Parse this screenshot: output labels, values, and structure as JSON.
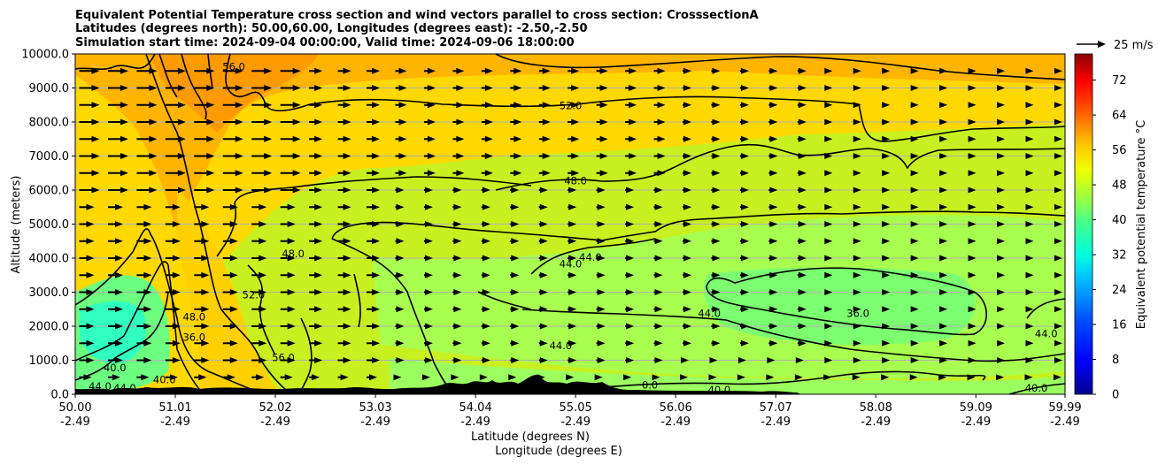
{
  "chart_data": {
    "type": "heatmap",
    "title_lines": [
      "Equivalent Potential Temperature cross section and wind vectors parallel to cross section: CrosssectionA",
      "Latitudes (degrees north): 50.00,60.00, Longitudes (degrees east): -2.50,-2.50",
      "Simulation start time: 2024-09-04 00:00:00, Valid time: 2024-09-06 18:00:00"
    ],
    "xlabel_lines": [
      "Latitude (degrees N)",
      "Longitude (degrees E)"
    ],
    "ylabel": "Altitude (meters)",
    "x_ticks": [
      {
        "lat": "50.00",
        "lon": "-2.49",
        "v": 50.0
      },
      {
        "lat": "51.01",
        "lon": "-2.49",
        "v": 51.01
      },
      {
        "lat": "52.02",
        "lon": "-2.49",
        "v": 52.02
      },
      {
        "lat": "53.03",
        "lon": "-2.49",
        "v": 53.03
      },
      {
        "lat": "54.04",
        "lon": "-2.49",
        "v": 54.04
      },
      {
        "lat": "55.05",
        "lon": "-2.49",
        "v": 55.05
      },
      {
        "lat": "56.06",
        "lon": "-2.49",
        "v": 56.06
      },
      {
        "lat": "57.07",
        "lon": "-2.49",
        "v": 57.07
      },
      {
        "lat": "58.08",
        "lon": "-2.49",
        "v": 58.08
      },
      {
        "lat": "59.09",
        "lon": "-2.49",
        "v": 59.09
      },
      {
        "lat": "59.99",
        "lon": "-2.49",
        "v": 59.99
      }
    ],
    "xlim": [
      50.0,
      59.99
    ],
    "y_ticks": [
      "0.0",
      "1000.0",
      "2000.0",
      "3000.0",
      "4000.0",
      "5000.0",
      "6000.0",
      "7000.0",
      "8000.0",
      "9000.0",
      "10000.0"
    ],
    "ylim": [
      0,
      10000
    ],
    "grid": "horizontal",
    "colorbar": {
      "label": "Equivalent potential temperature $^\\circ$C",
      "ticks": [
        "0",
        "8",
        "16",
        "24",
        "32",
        "40",
        "48",
        "56",
        "64",
        "72"
      ],
      "range": [
        0,
        78
      ],
      "colormap": "jet"
    },
    "quiver_key": {
      "label": "25 m/s",
      "value": 25
    },
    "contour_labels": [
      {
        "text": "56.0",
        "lat": 51.6,
        "alt": 9550
      },
      {
        "text": "52.0",
        "lat": 55.0,
        "alt": 8400
      },
      {
        "text": "48.0",
        "lat": 55.05,
        "alt": 6200
      },
      {
        "text": "48.0",
        "lat": 52.2,
        "alt": 4050
      },
      {
        "text": "44.0",
        "lat": 55.0,
        "alt": 3750
      },
      {
        "text": "44.0",
        "lat": 55.2,
        "alt": 3950
      },
      {
        "text": "52.0",
        "lat": 51.8,
        "alt": 2850
      },
      {
        "text": "48.0",
        "lat": 51.2,
        "alt": 2200
      },
      {
        "text": "36.0",
        "lat": 51.2,
        "alt": 1600
      },
      {
        "text": "56.0",
        "lat": 52.1,
        "alt": 1000
      },
      {
        "text": "44.0",
        "lat": 56.4,
        "alt": 2300
      },
      {
        "text": "36.0",
        "lat": 57.9,
        "alt": 2300
      },
      {
        "text": "44.0",
        "lat": 54.9,
        "alt": 1350
      },
      {
        "text": "44.0",
        "lat": 59.8,
        "alt": 1700
      },
      {
        "text": "40.0",
        "lat": 59.7,
        "alt": 100
      },
      {
        "text": "40.0",
        "lat": 50.4,
        "alt": 700
      },
      {
        "text": "40.0",
        "lat": 50.9,
        "alt": 350
      },
      {
        "text": "44.0",
        "lat": 50.25,
        "alt": 150
      },
      {
        "text": "44.0",
        "lat": 50.5,
        "alt": 100
      },
      {
        "text": "40.0",
        "lat": 56.5,
        "alt": 50
      },
      {
        "text": "0.0",
        "lat": 55.8,
        "alt": 200
      }
    ],
    "wind_vectors": {
      "rows_alt": [
        9500,
        9000,
        8500,
        8000,
        7500,
        7000,
        6500,
        6000,
        5500,
        5000,
        4500,
        4000,
        3500,
        3000,
        2500,
        2000,
        1500,
        1000,
        500
      ],
      "cols_lat_start": 50.0,
      "cols_lat_step": 0.29,
      "direction": "parallel to cross section, northward"
    },
    "field_description_levels": {
      "upper_warm_core_lat": 51.6,
      "upper_warm_core_value": 58,
      "lowlevel_cool_pool_lat": 57.5,
      "lowlevel_cool_pool_value": 37
    }
  }
}
